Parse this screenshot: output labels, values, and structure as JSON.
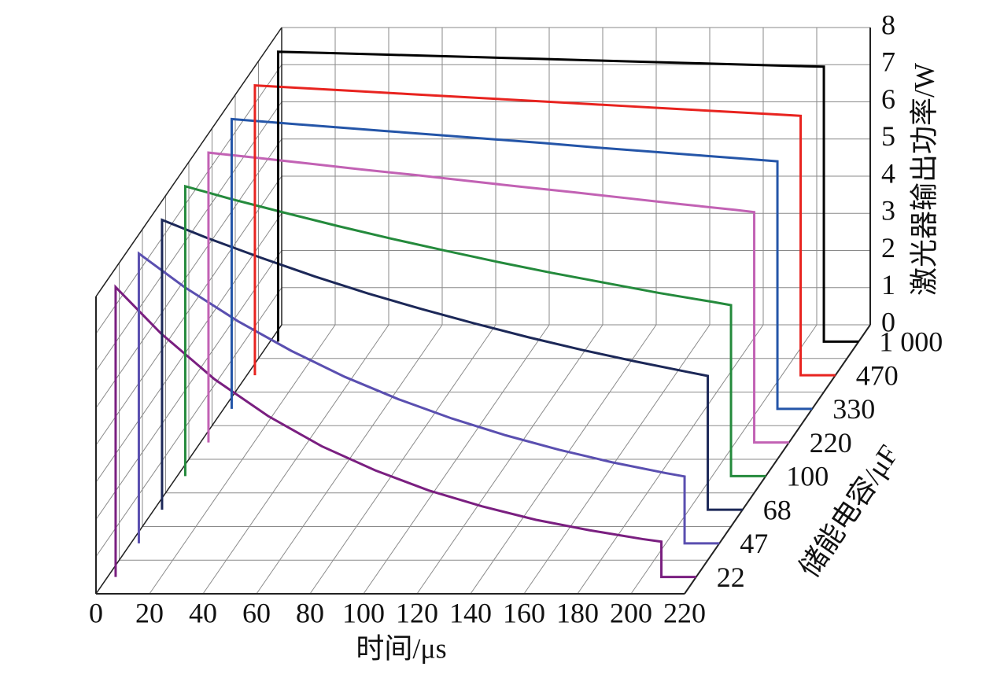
{
  "chart_data": {
    "type": "waterfall3d",
    "xlabel": "时间/μs",
    "zlabel": "激光器输出功率/W",
    "depth_label": "储能电容/μF",
    "xlim": [
      0,
      220
    ],
    "xticks": [
      0,
      20,
      40,
      60,
      80,
      100,
      120,
      140,
      160,
      180,
      200,
      220
    ],
    "zlim": [
      0,
      8
    ],
    "zticks": [
      0,
      1,
      2,
      3,
      4,
      5,
      6,
      7,
      8
    ],
    "grid": true,
    "x": [
      3,
      3,
      20,
      40,
      60,
      80,
      100,
      120,
      140,
      160,
      180,
      200,
      207,
      207,
      220
    ],
    "series": [
      {
        "name": "22",
        "color": "#7a1f80",
        "values": [
          0,
          7.8,
          6.55,
          5.32,
          4.33,
          3.52,
          2.87,
          2.33,
          1.9,
          1.54,
          1.26,
          1.02,
          0.95,
          0,
          0
        ]
      },
      {
        "name": "47",
        "color": "#5a4fb0",
        "values": [
          0,
          7.8,
          6.9,
          5.98,
          5.18,
          4.48,
          3.88,
          3.36,
          2.91,
          2.52,
          2.18,
          1.89,
          1.8,
          0,
          0
        ]
      },
      {
        "name": "68",
        "color": "#1c2858",
        "values": [
          0,
          7.8,
          7.31,
          6.78,
          6.28,
          5.82,
          5.4,
          5.01,
          4.64,
          4.3,
          3.99,
          3.7,
          3.6,
          0,
          0
        ]
      },
      {
        "name": "100",
        "color": "#248a3c",
        "values": [
          0,
          7.8,
          7.46,
          7.09,
          6.73,
          6.39,
          6.07,
          5.76,
          5.47,
          5.2,
          4.93,
          4.69,
          4.6,
          0,
          0
        ]
      },
      {
        "name": "220",
        "color": "#c262b4",
        "values": [
          0,
          7.8,
          7.67,
          7.51,
          7.35,
          7.2,
          7.04,
          6.88,
          6.73,
          6.57,
          6.41,
          6.26,
          6.2,
          0,
          0
        ]
      },
      {
        "name": "330",
        "color": "#2455a8",
        "values": [
          0,
          7.8,
          7.7,
          7.59,
          7.48,
          7.37,
          7.26,
          7.15,
          7.03,
          6.92,
          6.81,
          6.7,
          6.66,
          0,
          0
        ]
      },
      {
        "name": "470",
        "color": "#e8231f",
        "values": [
          0,
          7.8,
          7.73,
          7.65,
          7.57,
          7.49,
          7.41,
          7.33,
          7.25,
          7.17,
          7.09,
          7.01,
          6.98,
          0,
          0
        ]
      },
      {
        "name": "1 000",
        "color": "#000000",
        "values": [
          0,
          7.8,
          7.77,
          7.73,
          7.69,
          7.65,
          7.61,
          7.57,
          7.53,
          7.49,
          7.45,
          7.41,
          7.4,
          0,
          0
        ]
      }
    ]
  }
}
